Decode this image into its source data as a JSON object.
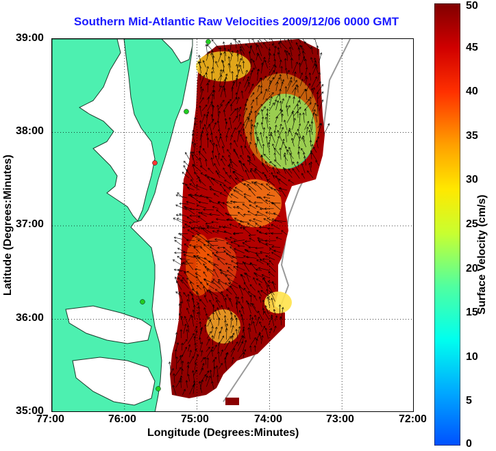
{
  "title": "Southern Mid-Atlantic Raw Velocities 2009/12/06 0000 GMT",
  "xlabel": "Longitude (Degrees:Minutes)",
  "ylabel": "Latitude (Degrees:Minutes)",
  "x_ticks": [
    "77:00",
    "76:00",
    "75:00",
    "74:00",
    "73:00",
    "72:00"
  ],
  "y_ticks": [
    "39:00",
    "38:00",
    "37:00",
    "36:00",
    "35:00"
  ],
  "colorbar": {
    "label": "Surface Velocity (cm/s)",
    "ticks": [
      "0",
      "5",
      "10",
      "15",
      "20",
      "25",
      "30",
      "35",
      "40",
      "45",
      "50"
    ],
    "min": 0,
    "max": 50
  },
  "colors": {
    "land": "#4df0b0",
    "water": "#ffffff",
    "title": "#1a1aff",
    "station_green": "#22cc22",
    "station_red": "#ff3333"
  },
  "map_extent": {
    "lon": [
      -77,
      -72
    ],
    "lat": [
      35,
      39
    ]
  }
}
